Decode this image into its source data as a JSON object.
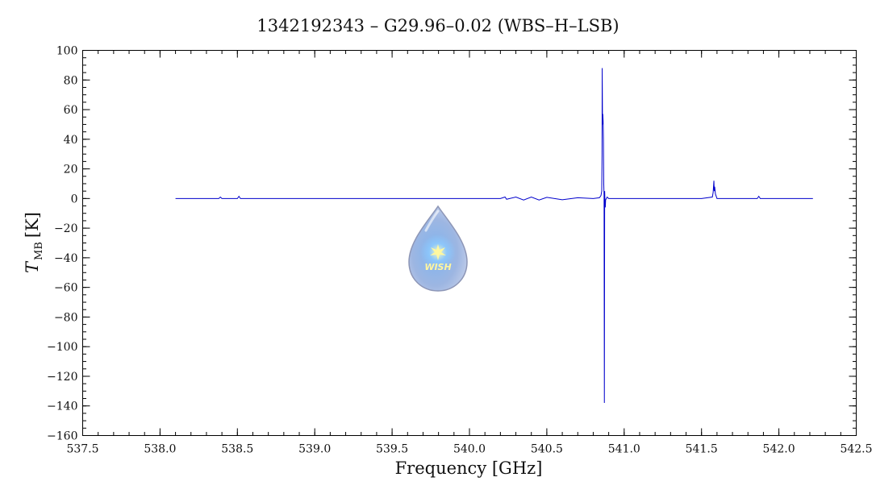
{
  "chart_data": {
    "type": "line",
    "title": "1342192343 – G29.96–0.02 (WBS–H–LSB)",
    "xlabel": "Frequency [GHz]",
    "ylabel_main": "T",
    "ylabel_sub": "MB",
    "ylabel_unit": "[K]",
    "xlim": [
      537.5,
      542.5
    ],
    "ylim": [
      -160,
      100
    ],
    "x_ticks": [
      537.5,
      538.0,
      538.5,
      539.0,
      539.5,
      540.0,
      540.5,
      541.0,
      541.5,
      542.0,
      542.5
    ],
    "x_tick_labels": [
      "537.5",
      "538.0",
      "538.5",
      "539.0",
      "539.5",
      "540.0",
      "540.5",
      "541.0",
      "541.5",
      "542.0",
      "542.5"
    ],
    "y_ticks": [
      100,
      80,
      60,
      40,
      20,
      0,
      -20,
      -40,
      -60,
      -80,
      -100,
      -120,
      -140,
      -160
    ],
    "y_tick_labels": [
      "100",
      "80",
      "60",
      "40",
      "20",
      "0",
      "−20",
      "−40",
      "−60",
      "−80",
      "−100",
      "−120",
      "−140",
      "−160"
    ],
    "x_minor_step": 0.1,
    "y_minor_step": 5,
    "grid": false,
    "series": [
      {
        "color": "#0000cc",
        "x": [
          538.1,
          538.38,
          538.39,
          538.4,
          538.5,
          538.51,
          538.52,
          539.0,
          540.2,
          540.23,
          540.24,
          540.3,
          540.35,
          540.4,
          540.45,
          540.5,
          540.6,
          540.7,
          540.8,
          540.84,
          540.85,
          540.855,
          540.857,
          540.858,
          540.86,
          540.862,
          540.864,
          540.866,
          540.868,
          540.87,
          540.872,
          540.874,
          540.876,
          540.878,
          540.88,
          540.89,
          540.9,
          541.0,
          541.1,
          541.5,
          541.57,
          541.575,
          541.58,
          541.582,
          541.585,
          541.59,
          541.6,
          541.7,
          541.86,
          541.87,
          541.88,
          542.0,
          542.22
        ],
        "y": [
          0,
          0,
          1,
          0,
          0,
          1.5,
          0,
          0,
          0,
          1,
          -0.5,
          1,
          -1,
          1,
          -1,
          0.8,
          -0.8,
          0.5,
          0,
          0.5,
          2,
          5,
          30,
          88,
          50,
          57,
          52,
          40,
          10,
          2,
          -138,
          5,
          -3,
          -6,
          -1,
          1,
          0,
          0,
          0,
          0,
          1,
          4,
          12,
          5,
          8,
          3,
          0,
          0,
          0,
          1.5,
          0,
          0,
          0
        ]
      }
    ]
  },
  "logo": {
    "text": "WISH"
  }
}
